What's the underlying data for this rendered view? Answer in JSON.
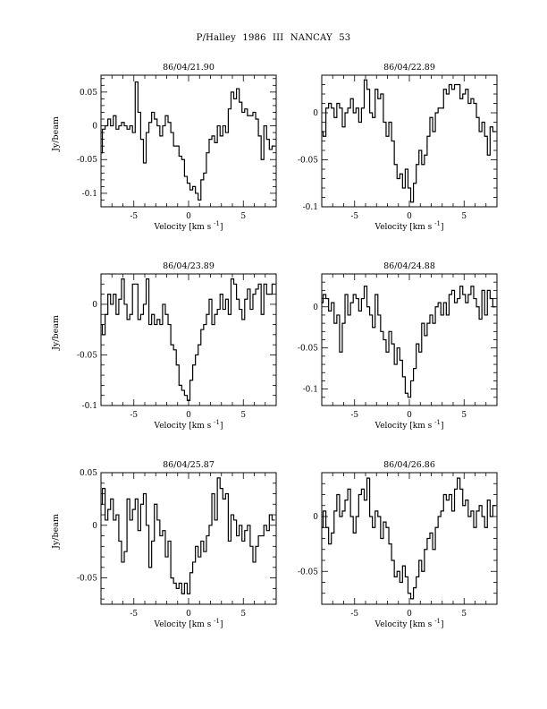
{
  "figure_title": "P/Halley 1986 III   NANCAY     53",
  "chart_data": [
    {
      "type": "line",
      "title": "86/04/21.90",
      "xlabel": "Velocity [km s",
      "xlabel_sup": "-1",
      "xlabel_close": "]",
      "ylabel": "Jy/beam",
      "xlim": [
        -8,
        8
      ],
      "ylim": [
        -0.12,
        0.075
      ],
      "xticks": [
        -5,
        0,
        5
      ],
      "xtick_labels": [
        "-5",
        "0",
        "5"
      ],
      "yticks": [
        0.05,
        0,
        -0.05,
        -0.1
      ],
      "ytick_labels": [
        "0.05",
        "0",
        "-0.05",
        "-0.1"
      ],
      "x": [
        -8.0,
        -7.75,
        -7.5,
        -7.25,
        -7.0,
        -6.75,
        -6.5,
        -6.25,
        -6.0,
        -5.75,
        -5.5,
        -5.25,
        -5.0,
        -4.75,
        -4.5,
        -4.25,
        -4.0,
        -3.75,
        -3.5,
        -3.25,
        -3.0,
        -2.75,
        -2.5,
        -2.25,
        -2.0,
        -1.75,
        -1.5,
        -1.25,
        -1.0,
        -0.75,
        -0.5,
        -0.25,
        0.0,
        0.25,
        0.5,
        0.75,
        1.0,
        1.25,
        1.5,
        1.75,
        2.0,
        2.25,
        2.5,
        2.75,
        3.0,
        3.25,
        3.5,
        3.75,
        4.0,
        4.25,
        4.5,
        4.75,
        5.0,
        5.25,
        5.5,
        5.75,
        6.0,
        6.25,
        6.5,
        6.75,
        7.0,
        7.25,
        7.5,
        7.75
      ],
      "y": [
        -0.04,
        -0.005,
        0.0,
        0.01,
        0.0,
        0.015,
        -0.005,
        0.0,
        0.005,
        0.0,
        -0.005,
        0.0,
        -0.01,
        0.065,
        0.02,
        -0.02,
        -0.055,
        -0.01,
        0.005,
        0.02,
        0.01,
        0.0,
        -0.015,
        0.0,
        0.015,
        0.005,
        -0.01,
        -0.03,
        -0.03,
        -0.045,
        -0.05,
        -0.075,
        -0.085,
        -0.095,
        -0.09,
        -0.1,
        -0.11,
        -0.08,
        -0.07,
        -0.04,
        -0.02,
        -0.015,
        -0.025,
        0.0,
        -0.015,
        0.0,
        -0.01,
        0.025,
        0.05,
        0.04,
        0.055,
        0.035,
        0.02,
        0.025,
        0.015,
        0.015,
        0.02,
        0.01,
        -0.015,
        -0.05,
        0.0,
        -0.02,
        -0.035,
        -0.03
      ]
    },
    {
      "type": "line",
      "title": "86/04/22.89",
      "xlabel": "Velocity [km s",
      "xlabel_sup": "-1",
      "xlabel_close": "]",
      "ylabel": "",
      "xlim": [
        -8,
        8
      ],
      "ylim": [
        -0.1,
        0.04
      ],
      "xticks": [
        -5,
        0,
        5
      ],
      "xtick_labels": [
        "-5",
        "0",
        "5"
      ],
      "yticks": [
        0,
        -0.05,
        -0.1
      ],
      "ytick_labels": [
        "0",
        "-0.05",
        "-0.1"
      ],
      "x": [
        -8.0,
        -7.75,
        -7.5,
        -7.25,
        -7.0,
        -6.75,
        -6.5,
        -6.25,
        -6.0,
        -5.75,
        -5.5,
        -5.25,
        -5.0,
        -4.75,
        -4.5,
        -4.25,
        -4.0,
        -3.75,
        -3.5,
        -3.25,
        -3.0,
        -2.75,
        -2.5,
        -2.25,
        -2.0,
        -1.75,
        -1.5,
        -1.25,
        -1.0,
        -0.75,
        -0.5,
        -0.25,
        0.0,
        0.25,
        0.5,
        0.75,
        1.0,
        1.25,
        1.5,
        1.75,
        2.0,
        2.25,
        2.5,
        2.75,
        3.0,
        3.25,
        3.5,
        3.75,
        4.0,
        4.25,
        4.5,
        4.75,
        5.0,
        5.25,
        5.5,
        5.75,
        6.0,
        6.25,
        6.5,
        6.75,
        7.0,
        7.25,
        7.5,
        7.75
      ],
      "y": [
        -0.02,
        -0.025,
        0.005,
        0.01,
        0.005,
        -0.005,
        0.01,
        0.005,
        -0.015,
        0.0,
        0.005,
        0.015,
        0.0,
        0.005,
        -0.01,
        0.005,
        0.035,
        0.025,
        0.0,
        -0.005,
        0.025,
        0.015,
        0.02,
        -0.01,
        -0.025,
        -0.01,
        -0.03,
        -0.055,
        -0.07,
        -0.065,
        -0.08,
        -0.06,
        -0.08,
        -0.095,
        -0.075,
        -0.055,
        -0.04,
        -0.055,
        -0.045,
        -0.025,
        -0.005,
        -0.02,
        0.0,
        0.005,
        0.005,
        0.025,
        0.02,
        0.03,
        0.025,
        0.03,
        0.03,
        0.015,
        0.02,
        0.025,
        0.01,
        0.015,
        0.01,
        -0.005,
        -0.02,
        -0.01,
        -0.025,
        -0.045,
        -0.015,
        -0.02
      ]
    },
    {
      "type": "line",
      "title": "86/04/23.89",
      "xlabel": "Velocity [km s",
      "xlabel_sup": "-1",
      "xlabel_close": "]",
      "ylabel": "Jy/beam",
      "xlim": [
        -8,
        8
      ],
      "ylim": [
        -0.1,
        0.03
      ],
      "xticks": [
        -5,
        0,
        5
      ],
      "xtick_labels": [
        "-5",
        "0",
        "5"
      ],
      "yticks": [
        0,
        -0.05,
        -0.1
      ],
      "ytick_labels": [
        "0",
        "-0.05",
        "-0.1"
      ],
      "x": [
        -8.0,
        -7.75,
        -7.5,
        -7.25,
        -7.0,
        -6.75,
        -6.5,
        -6.25,
        -6.0,
        -5.75,
        -5.5,
        -5.25,
        -5.0,
        -4.75,
        -4.5,
        -4.25,
        -4.0,
        -3.75,
        -3.5,
        -3.25,
        -3.0,
        -2.75,
        -2.5,
        -2.25,
        -2.0,
        -1.75,
        -1.5,
        -1.25,
        -1.0,
        -0.75,
        -0.5,
        -0.25,
        0.0,
        0.25,
        0.5,
        0.75,
        1.0,
        1.25,
        1.5,
        1.75,
        2.0,
        2.25,
        2.5,
        2.75,
        3.0,
        3.25,
        3.5,
        3.75,
        4.0,
        4.25,
        4.5,
        4.75,
        5.0,
        5.25,
        5.5,
        5.75,
        6.0,
        6.25,
        6.5,
        6.75,
        7.0,
        7.25,
        7.5,
        7.75
      ],
      "y": [
        -0.02,
        -0.03,
        -0.01,
        0.01,
        0.0,
        0.01,
        -0.01,
        0.005,
        0.025,
        0.0,
        -0.015,
        -0.01,
        0.02,
        0.02,
        -0.015,
        -0.01,
        0.0,
        0.025,
        -0.02,
        -0.01,
        -0.02,
        -0.015,
        -0.02,
        0.0,
        -0.01,
        -0.02,
        -0.04,
        -0.045,
        -0.06,
        -0.08,
        -0.085,
        -0.09,
        -0.095,
        -0.075,
        -0.06,
        -0.05,
        -0.04,
        -0.025,
        -0.02,
        -0.01,
        0.005,
        -0.02,
        -0.01,
        -0.005,
        0.01,
        -0.005,
        0.005,
        -0.01,
        0.025,
        0.02,
        0.005,
        -0.005,
        -0.015,
        0.005,
        0.015,
        -0.005,
        0.01,
        0.015,
        0.02,
        -0.01,
        0.02,
        0.01,
        0.01,
        0.02
      ]
    },
    {
      "type": "line",
      "title": "86/04/24.88",
      "xlabel": "Velocity [km s",
      "xlabel_sup": "-1",
      "xlabel_close": "]",
      "ylabel": "",
      "xlim": [
        -8,
        8
      ],
      "ylim": [
        -0.12,
        0.04
      ],
      "xticks": [
        -5,
        0,
        5
      ],
      "xtick_labels": [
        "-5",
        "0",
        "5"
      ],
      "yticks": [
        0,
        -0.05,
        -0.1
      ],
      "ytick_labels": [
        "0",
        "-0.05",
        "-0.1"
      ],
      "x": [
        -8.0,
        -7.75,
        -7.5,
        -7.25,
        -7.0,
        -6.75,
        -6.5,
        -6.25,
        -6.0,
        -5.75,
        -5.5,
        -5.25,
        -5.0,
        -4.75,
        -4.5,
        -4.25,
        -4.0,
        -3.75,
        -3.5,
        -3.25,
        -3.0,
        -2.75,
        -2.5,
        -2.25,
        -2.0,
        -1.75,
        -1.5,
        -1.25,
        -1.0,
        -0.75,
        -0.5,
        -0.25,
        0.0,
        0.25,
        0.5,
        0.75,
        1.0,
        1.25,
        1.5,
        1.75,
        2.0,
        2.25,
        2.5,
        2.75,
        3.0,
        3.25,
        3.5,
        3.75,
        4.0,
        4.25,
        4.5,
        4.75,
        5.0,
        5.25,
        5.5,
        5.75,
        6.0,
        6.25,
        6.5,
        6.75,
        7.0,
        7.25,
        7.5,
        7.75
      ],
      "y": [
        0.005,
        0.015,
        0.01,
        -0.005,
        0.005,
        -0.02,
        -0.01,
        -0.055,
        -0.02,
        0.015,
        -0.01,
        0.005,
        0.015,
        0.01,
        -0.005,
        0.01,
        0.025,
        0.0,
        -0.01,
        -0.025,
        0.015,
        -0.01,
        -0.03,
        -0.04,
        -0.055,
        -0.03,
        -0.045,
        -0.07,
        -0.05,
        -0.065,
        -0.085,
        -0.105,
        -0.11,
        -0.09,
        -0.075,
        -0.045,
        -0.055,
        -0.02,
        -0.035,
        -0.02,
        -0.01,
        -0.02,
        0.0,
        0.005,
        -0.01,
        0.005,
        -0.01,
        0.015,
        0.02,
        0.005,
        0.01,
        0.025,
        0.015,
        0.005,
        0.015,
        0.025,
        0.01,
        0.0,
        -0.015,
        0.02,
        -0.01,
        0.02,
        0.01,
        0.0
      ]
    },
    {
      "type": "line",
      "title": "86/04/25.87",
      "xlabel": "Velocity [km s",
      "xlabel_sup": "-1",
      "xlabel_close": "]",
      "ylabel": "Jy/beam",
      "xlim": [
        -8,
        8
      ],
      "ylim": [
        -0.075,
        0.05
      ],
      "xticks": [
        -5,
        0,
        5
      ],
      "xtick_labels": [
        "-5",
        "0",
        "5"
      ],
      "yticks": [
        0.05,
        0,
        -0.05
      ],
      "ytick_labels": [
        "0.05",
        "0",
        "-0.05"
      ],
      "x": [
        -8.0,
        -7.75,
        -7.5,
        -7.25,
        -7.0,
        -6.75,
        -6.5,
        -6.25,
        -6.0,
        -5.75,
        -5.5,
        -5.25,
        -5.0,
        -4.75,
        -4.5,
        -4.25,
        -4.0,
        -3.75,
        -3.5,
        -3.25,
        -3.0,
        -2.75,
        -2.5,
        -2.25,
        -2.0,
        -1.75,
        -1.5,
        -1.25,
        -1.0,
        -0.75,
        -0.5,
        -0.25,
        0.0,
        0.25,
        0.5,
        0.75,
        1.0,
        1.25,
        1.5,
        1.75,
        2.0,
        2.25,
        2.5,
        2.75,
        3.0,
        3.25,
        3.5,
        3.75,
        4.0,
        4.25,
        4.5,
        4.75,
        5.0,
        5.25,
        5.5,
        5.75,
        6.0,
        6.25,
        6.5,
        6.75,
        7.0,
        7.25,
        7.5,
        7.75
      ],
      "y": [
        0.02,
        0.035,
        0.005,
        0.015,
        0.025,
        0.005,
        0.01,
        -0.015,
        -0.035,
        -0.025,
        0.025,
        0.005,
        0.015,
        0.025,
        -0.005,
        0.02,
        0.03,
        0.0,
        -0.04,
        -0.015,
        0.02,
        0.005,
        -0.01,
        -0.005,
        -0.03,
        -0.015,
        -0.05,
        -0.055,
        -0.06,
        -0.055,
        -0.065,
        -0.055,
        -0.065,
        -0.045,
        -0.035,
        -0.02,
        -0.03,
        -0.015,
        -0.025,
        -0.01,
        0.0,
        0.03,
        0.005,
        0.045,
        0.035,
        0.025,
        0.03,
        -0.015,
        0.01,
        0.005,
        -0.01,
        0.0,
        -0.015,
        -0.005,
        0.0,
        -0.02,
        -0.035,
        -0.02,
        -0.01,
        -0.01,
        0.0,
        -0.005,
        0.01,
        0.005
      ]
    },
    {
      "type": "line",
      "title": "86/04/26.86",
      "xlabel": "Velocity [km s",
      "xlabel_sup": "-1",
      "xlabel_close": "]",
      "ylabel": "",
      "xlim": [
        -8,
        8
      ],
      "ylim": [
        -0.08,
        0.04
      ],
      "xticks": [
        -5,
        0,
        5
      ],
      "xtick_labels": [
        "-5",
        "0",
        "5"
      ],
      "yticks": [
        0,
        -0.05
      ],
      "ytick_labels": [
        "0",
        "-0.05"
      ],
      "x": [
        -8.0,
        -7.75,
        -7.5,
        -7.25,
        -7.0,
        -6.75,
        -6.5,
        -6.25,
        -6.0,
        -5.75,
        -5.5,
        -5.25,
        -5.0,
        -4.75,
        -4.5,
        -4.25,
        -4.0,
        -3.75,
        -3.5,
        -3.25,
        -3.0,
        -2.75,
        -2.5,
        -2.25,
        -2.0,
        -1.75,
        -1.5,
        -1.25,
        -1.0,
        -0.75,
        -0.5,
        -0.25,
        0.0,
        0.25,
        0.5,
        0.75,
        1.0,
        1.25,
        1.5,
        1.75,
        2.0,
        2.25,
        2.5,
        2.75,
        3.0,
        3.25,
        3.5,
        3.75,
        4.0,
        4.25,
        4.5,
        4.75,
        5.0,
        5.25,
        5.5,
        5.75,
        6.0,
        6.25,
        6.5,
        6.75,
        7.0,
        7.25,
        7.5,
        7.75
      ],
      "y": [
        -0.01,
        0.005,
        -0.01,
        -0.025,
        -0.015,
        0.005,
        0.02,
        0.0,
        0.005,
        0.015,
        0.025,
        0.0,
        -0.015,
        0.0,
        0.02,
        0.025,
        0.015,
        0.035,
        0.0,
        -0.01,
        0.005,
        0.0,
        -0.02,
        -0.005,
        -0.01,
        -0.025,
        -0.04,
        -0.055,
        -0.05,
        -0.06,
        -0.045,
        -0.055,
        -0.07,
        -0.075,
        -0.065,
        -0.055,
        -0.04,
        -0.05,
        -0.03,
        -0.02,
        -0.015,
        -0.03,
        -0.01,
        0.0,
        0.005,
        0.02,
        0.015,
        0.02,
        0.005,
        0.025,
        0.035,
        0.025,
        0.01,
        0.015,
        0.0,
        0.005,
        -0.01,
        0.005,
        0.01,
        0.0,
        -0.01,
        0.015,
        0.0,
        0.01
      ]
    }
  ]
}
